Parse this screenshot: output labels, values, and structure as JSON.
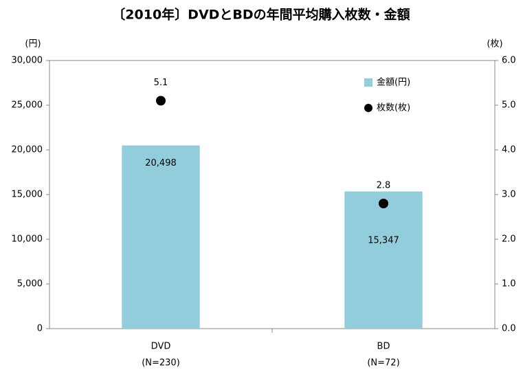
{
  "chart_data": {
    "type": "bar",
    "title": "〔2010年〕DVDとBDの年間平均購入枚数・金額",
    "y_unit": "(円)",
    "y2_unit": "(枚)",
    "categories": [
      "DVD",
      "BD"
    ],
    "category_notes": [
      "(N=230)",
      "(N=72)"
    ],
    "series": [
      {
        "name": "金額(円)",
        "type": "bar",
        "color": "#92cddc",
        "values": [
          20498,
          15347
        ],
        "value_labels": [
          "20,498",
          "15,347"
        ]
      },
      {
        "name": "枚数(枚)",
        "type": "scatter",
        "axis": "y2",
        "color": "#000000",
        "values": [
          5.1,
          2.8
        ]
      }
    ],
    "ylim": [
      0,
      30000
    ],
    "yticks": [
      0,
      {
        "value": 5000,
        "label": "5,000"
      },
      {
        "value": 10000,
        "label": "10,000"
      },
      {
        "value": 15000,
        "label": "15,000"
      },
      {
        "value": 20000,
        "label": "20,000"
      },
      {
        "value": 25000,
        "label": "25,000"
      },
      {
        "value": 30000,
        "label": "30,000"
      }
    ],
    "y2lim": [
      0,
      6
    ],
    "y2ticks": [
      {
        "value": 0,
        "label": "0.0"
      },
      {
        "value": 1,
        "label": "1.0"
      },
      {
        "value": 2,
        "label": "2.0"
      },
      {
        "value": 3,
        "label": "3.0"
      },
      {
        "value": 4,
        "label": "4.0"
      },
      {
        "value": 5,
        "label": "5.0"
      },
      {
        "value": 6,
        "label": "6.0"
      }
    ],
    "grid": false,
    "legend": "upper right"
  }
}
